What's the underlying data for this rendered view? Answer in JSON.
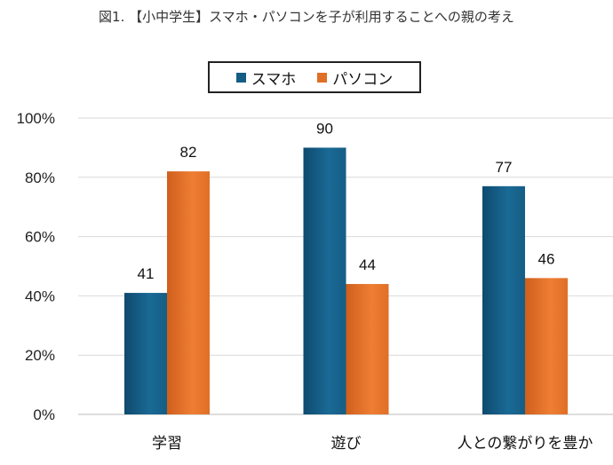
{
  "chart_data": {
    "type": "bar",
    "title": "図1. 【小中学生】スマホ・パソコンを子が利用することへの親の考え",
    "categories": [
      "学習",
      "遊び",
      "人との繋がりを豊か"
    ],
    "series": [
      {
        "name": "スマホ",
        "values": [
          41,
          90,
          77
        ],
        "color": "#155d85"
      },
      {
        "name": "パソコン",
        "values": [
          82,
          44,
          46
        ],
        "color": "#e06f26"
      }
    ],
    "ylim": [
      0,
      100
    ],
    "yticks": [
      "0%",
      "20%",
      "40%",
      "60%",
      "80%",
      "100%"
    ],
    "grid": true,
    "legend": "top"
  }
}
